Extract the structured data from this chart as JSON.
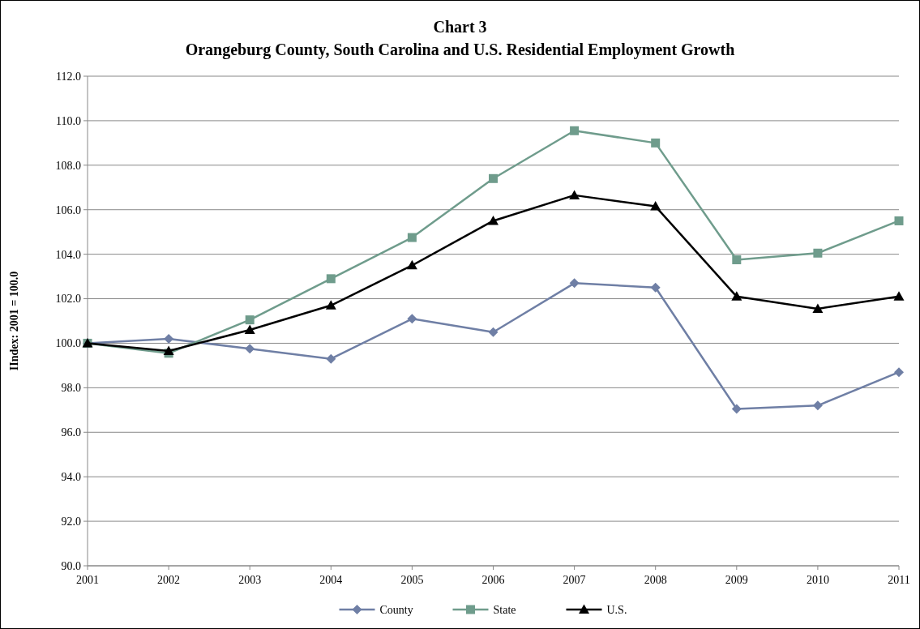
{
  "chart_data": {
    "type": "line",
    "title": "Chart 3",
    "subtitle": "Orangeburg County, South Carolina and U.S. Residential Employment Growth",
    "ylabel": "IIndex: 2001 = 100.0",
    "x": [
      2001,
      2002,
      2003,
      2004,
      2005,
      2006,
      2007,
      2008,
      2009,
      2010,
      2011
    ],
    "xlim": [
      2001,
      2011
    ],
    "xticks": [
      2001,
      2002,
      2003,
      2004,
      2005,
      2006,
      2007,
      2008,
      2009,
      2010,
      2011
    ],
    "ylim": [
      90,
      112
    ],
    "yticks": [
      {
        "value": 90,
        "label": "90.0"
      },
      {
        "value": 92,
        "label": "92.0"
      },
      {
        "value": 94,
        "label": "94.0"
      },
      {
        "value": 96,
        "label": "96.0"
      },
      {
        "value": 98,
        "label": "98.0"
      },
      {
        "value": 100,
        "label": "100.0"
      },
      {
        "value": 102,
        "label": "102.0"
      },
      {
        "value": 104,
        "label": "104.0"
      },
      {
        "value": 106,
        "label": "106.0"
      },
      {
        "value": 108,
        "label": "108.0"
      },
      {
        "value": 110,
        "label": "110.0"
      },
      {
        "value": 112,
        "label": "112.0"
      }
    ],
    "grid": "y",
    "legend": "bottom",
    "line_style": "solid",
    "series": [
      {
        "name": "County",
        "color": "#6f7fa5",
        "marker": "diamond",
        "values": [
          100.0,
          100.2,
          99.75,
          99.3,
          101.1,
          100.5,
          102.7,
          102.5,
          97.05,
          97.2,
          98.7
        ]
      },
      {
        "name": "State",
        "color": "#6f9c8c",
        "marker": "square",
        "values": [
          100.0,
          99.55,
          101.05,
          102.9,
          104.75,
          107.4,
          109.55,
          109.0,
          103.75,
          104.05,
          105.5
        ]
      },
      {
        "name": "U.S.",
        "color": "#000000",
        "marker": "triangle",
        "values": [
          100.0,
          99.65,
          100.6,
          101.7,
          103.5,
          105.5,
          106.65,
          106.15,
          102.1,
          101.55,
          102.1
        ]
      }
    ]
  }
}
